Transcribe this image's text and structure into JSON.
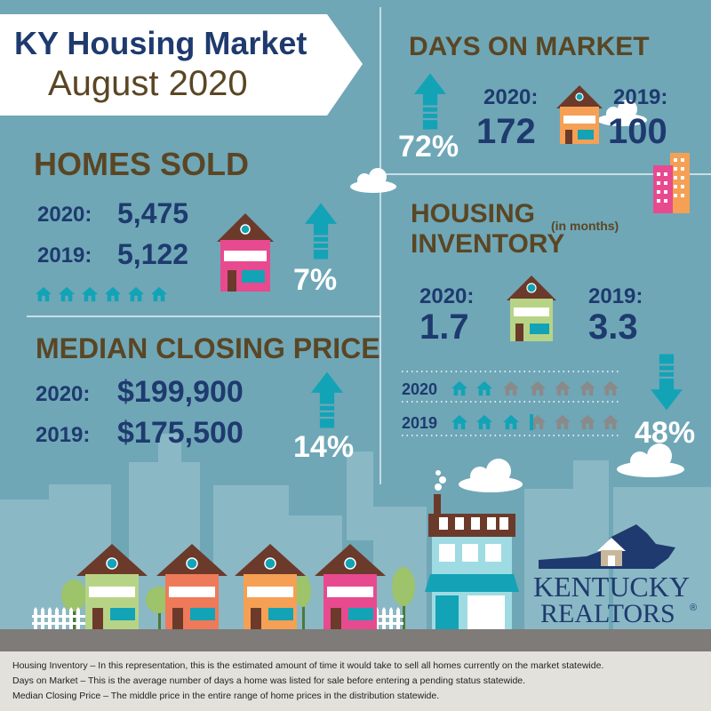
{
  "title": {
    "line1": "KY Housing Market",
    "line2": "August 2020"
  },
  "homes_sold": {
    "heading": "HOMES SOLD",
    "label_2020": "2020:",
    "value_2020": "5,475",
    "label_2019": "2019:",
    "value_2019": "5,122",
    "change": "7%",
    "direction": "up"
  },
  "median_price": {
    "heading": "MEDIAN CLOSING PRICE",
    "label_2020": "2020:",
    "value_2020": "$199,900",
    "label_2019": "2019:",
    "value_2019": "$175,500",
    "change": "14%",
    "direction": "up"
  },
  "days_on_market": {
    "heading": "DAYS ON MARKET",
    "change": "72%",
    "direction": "up",
    "label_2020": "2020:",
    "value_2020": "172",
    "label_2019": "2019:",
    "value_2019": "100"
  },
  "inventory": {
    "heading_line1": "HOUSING",
    "heading_line2": "INVENTORY",
    "note": "(in months)",
    "label_2020": "2020:",
    "value_2020": "1.7",
    "label_2019": "2019:",
    "value_2019": "3.3",
    "row_2020": "2020",
    "row_2019": "2019",
    "change": "48%",
    "direction": "down"
  },
  "logo": {
    "line1": "KENTUCKY",
    "line2": "REALTORS",
    "mark": "®"
  },
  "footer": [
    "Housing Inventory – In this representation, this is the estimated amount of time it would take to sell all homes currently on the market statewide.",
    "Days on Market – This is the average number of days a home was listed for sale before entering a pending status statewide.",
    "Median Closing Price – The middle price in the entire range of home prices in the distribution statewide."
  ],
  "colors": {
    "background": "#6fa7b7",
    "navy": "#1e3a6e",
    "brown": "#5a4624",
    "teal": "#12a3b6",
    "pink": "#e84a8f",
    "orange": "#f5a054",
    "green": "#9dc36b",
    "coral": "#ee7a5a"
  }
}
